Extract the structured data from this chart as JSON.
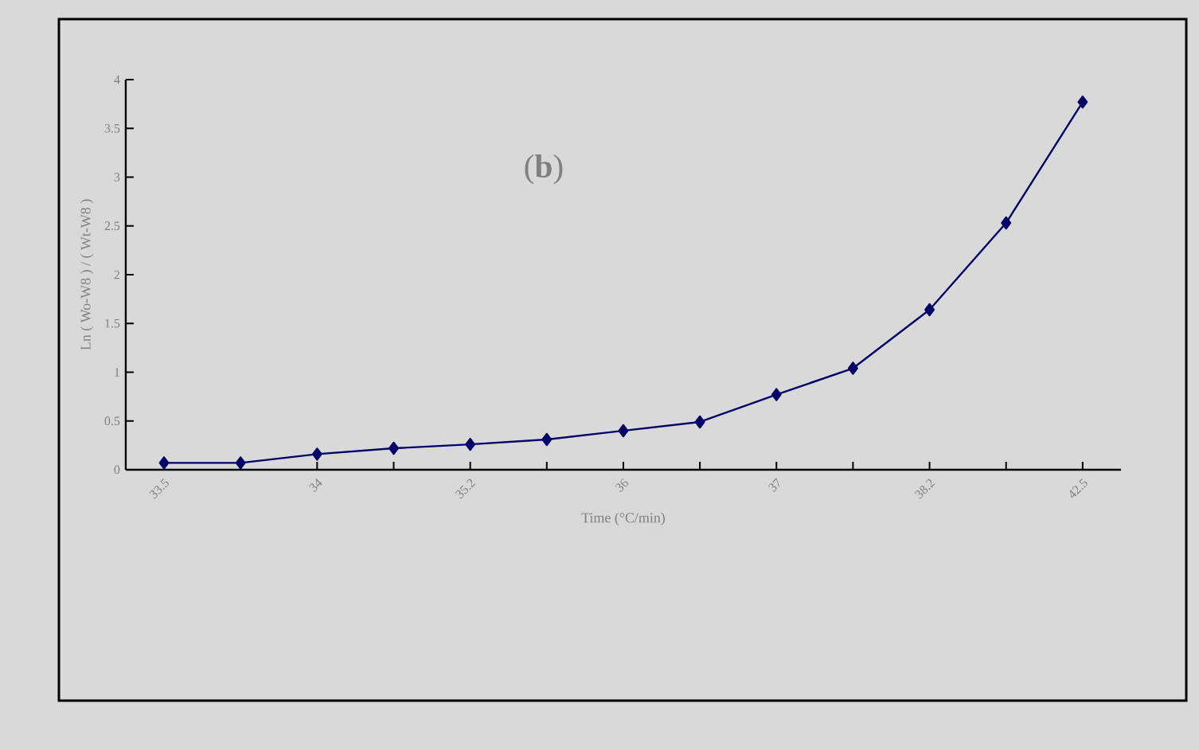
{
  "chart_data": {
    "type": "line",
    "categories": [
      "33.5",
      null,
      "34",
      null,
      "35.2",
      null,
      "36",
      null,
      "37",
      null,
      "38.2",
      null,
      "42.5"
    ],
    "values": [
      0.07,
      0.07,
      0.16,
      0.22,
      0.26,
      0.31,
      0.4,
      0.49,
      0.77,
      1.04,
      1.64,
      2.53,
      3.77
    ],
    "color": "#000066",
    "marker": "diamond",
    "line_style": "solid",
    "ylim": [
      0,
      4
    ],
    "yticks": [
      0,
      0.5,
      1,
      1.5,
      2,
      2.5,
      3,
      3.5,
      4
    ],
    "xlabel": "Time (°C/min)",
    "ylabel": "Ln ( Wo-W8 ) / ( Wt-W8 )",
    "annotations": [
      "(**b**)"
    ]
  }
}
